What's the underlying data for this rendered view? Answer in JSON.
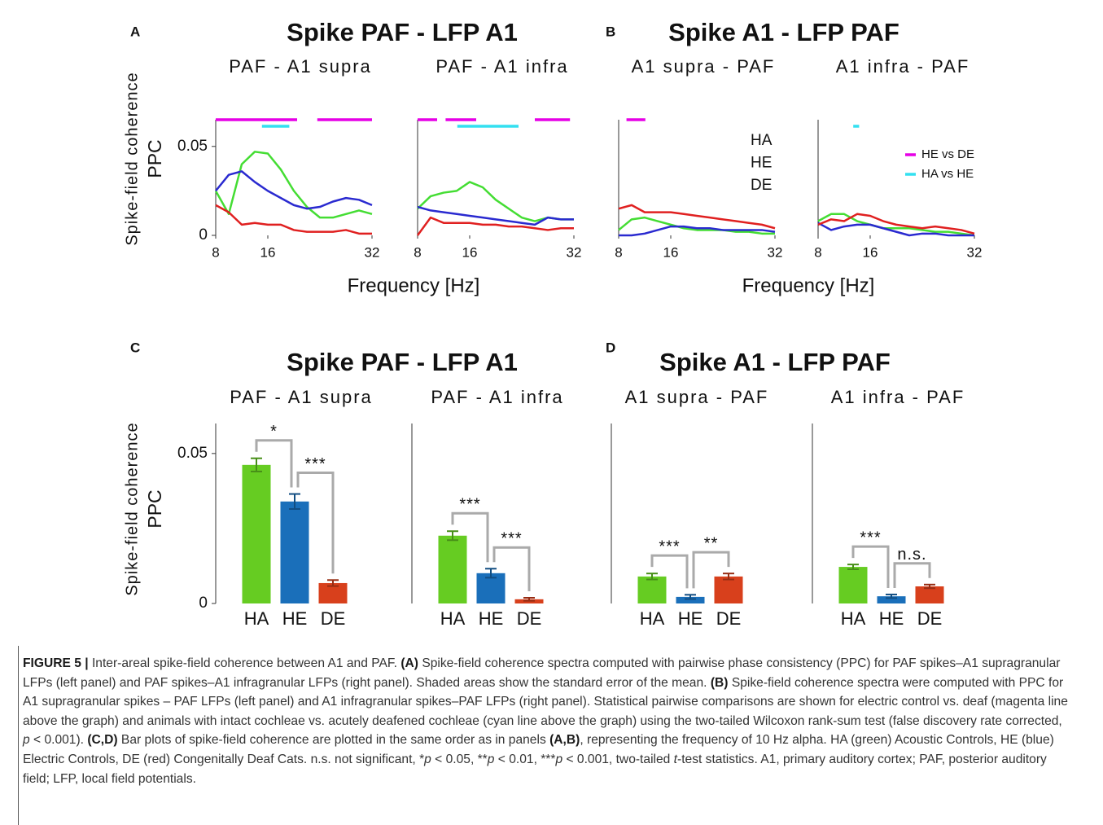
{
  "groups": [
    {
      "label": "A",
      "title": "Spike PAF - LFP A1",
      "xlabel": "Frequency [Hz]"
    },
    {
      "label": "B",
      "title": "Spike A1 - LFP PAF",
      "xlabel": "Frequency [Hz]"
    },
    {
      "label": "C",
      "title": "Spike PAF - LFP A1"
    },
    {
      "label": "D",
      "title": "Spike A1 - LFP PAF"
    }
  ],
  "chart_data": [
    {
      "type": "line",
      "title": "PAF - A1 supra",
      "ylabel": [
        "Spike-field coherence",
        "PPC"
      ],
      "x": [
        8,
        10,
        12,
        14,
        16,
        18,
        20,
        22,
        24,
        26,
        28,
        30,
        32
      ],
      "xlim": [
        8,
        32
      ],
      "xticks": [
        8,
        16,
        32
      ],
      "ylim": [
        0,
        0.065
      ],
      "yticks": [
        0,
        0.05
      ],
      "series": [
        {
          "color": "#44dd33",
          "values": [
            0.025,
            0.012,
            0.04,
            0.047,
            0.046,
            0.037,
            0.025,
            0.016,
            0.01,
            0.01,
            0.012,
            0.014,
            0.012
          ]
        },
        {
          "color": "#2a2ad0",
          "values": [
            0.025,
            0.034,
            0.036,
            0.03,
            0.025,
            0.021,
            0.017,
            0.015,
            0.016,
            0.019,
            0.021,
            0.02,
            0.017
          ]
        },
        {
          "color": "#e02020",
          "values": [
            0.017,
            0.013,
            0.006,
            0.007,
            0.006,
            0.006,
            0.003,
            0.002,
            0.002,
            0.002,
            0.003,
            0.001,
            0.001
          ]
        }
      ],
      "significance": [
        {
          "color": "#e600e6",
          "ranges": [
            [
              8,
              20.5
            ],
            [
              23.6,
              32
            ]
          ]
        },
        {
          "color": "#33e0f0",
          "ranges": [
            [
              15.1,
              19.3
            ]
          ]
        }
      ]
    },
    {
      "type": "line",
      "title": "PAF - A1 infra",
      "x": [
        8,
        10,
        12,
        14,
        16,
        18,
        20,
        22,
        24,
        26,
        28,
        30,
        32
      ],
      "xlim": [
        8,
        32
      ],
      "xticks": [
        8,
        16,
        32
      ],
      "ylim": [
        0,
        0.065
      ],
      "series": [
        {
          "color": "#44dd33",
          "values": [
            0.015,
            0.022,
            0.024,
            0.025,
            0.03,
            0.027,
            0.02,
            0.015,
            0.01,
            0.008,
            0.01,
            0.009,
            0.009
          ]
        },
        {
          "color": "#2a2ad0",
          "values": [
            0.016,
            0.014,
            0.013,
            0.012,
            0.011,
            0.01,
            0.009,
            0.008,
            0.007,
            0.006,
            0.01,
            0.009,
            0.009
          ]
        },
        {
          "color": "#e02020",
          "values": [
            0.0,
            0.01,
            0.007,
            0.007,
            0.007,
            0.006,
            0.006,
            0.005,
            0.005,
            0.004,
            0.003,
            0.004,
            0.004
          ]
        }
      ],
      "significance": [
        {
          "color": "#e600e6",
          "ranges": [
            [
              8,
              11
            ],
            [
              12.3,
              17
            ],
            [
              26,
              31.4
            ]
          ]
        },
        {
          "color": "#33e0f0",
          "ranges": [
            [
              14.1,
              23.5
            ]
          ]
        }
      ]
    },
    {
      "type": "line",
      "title": "A1 supra - PAF",
      "x": [
        8,
        10,
        12,
        14,
        16,
        18,
        20,
        22,
        24,
        26,
        28,
        30,
        32
      ],
      "xlim": [
        8,
        32
      ],
      "xticks": [
        8,
        16,
        32
      ],
      "ylim": [
        0,
        0.065
      ],
      "series": [
        {
          "name": "HA",
          "color": "#44dd33",
          "values": [
            0.003,
            0.009,
            0.01,
            0.008,
            0.006,
            0.004,
            0.003,
            0.003,
            0.003,
            0.002,
            0.002,
            0.001,
            0.001
          ]
        },
        {
          "name": "HE",
          "color": "#2a2ad0",
          "values": [
            0.0,
            0.0,
            0.001,
            0.003,
            0.005,
            0.005,
            0.004,
            0.004,
            0.003,
            0.003,
            0.003,
            0.003,
            0.002
          ]
        },
        {
          "name": "DE",
          "color": "#e02020",
          "values": [
            0.015,
            0.017,
            0.013,
            0.013,
            0.013,
            0.012,
            0.011,
            0.01,
            0.009,
            0.008,
            0.007,
            0.006,
            0.004
          ]
        }
      ],
      "significance": [
        {
          "color": "#e600e6",
          "ranges": [
            [
              9.2,
              12.1
            ]
          ]
        }
      ]
    },
    {
      "type": "line",
      "title": "A1 infra - PAF",
      "x": [
        8,
        10,
        12,
        14,
        16,
        18,
        20,
        22,
        24,
        26,
        28,
        30,
        32
      ],
      "xlim": [
        8,
        32
      ],
      "xticks": [
        8,
        16,
        32
      ],
      "ylim": [
        0,
        0.065
      ],
      "series": [
        {
          "color": "#44dd33",
          "values": [
            0.008,
            0.012,
            0.012,
            0.008,
            0.006,
            0.004,
            0.004,
            0.004,
            0.003,
            0.002,
            0.002,
            0.001,
            0.0
          ]
        },
        {
          "color": "#2a2ad0",
          "values": [
            0.007,
            0.003,
            0.005,
            0.006,
            0.006,
            0.004,
            0.002,
            0.0,
            0.001,
            0.001,
            0.0,
            0.0,
            0.0
          ]
        },
        {
          "color": "#e02020",
          "values": [
            0.006,
            0.009,
            0.008,
            0.012,
            0.011,
            0.008,
            0.006,
            0.005,
            0.004,
            0.005,
            0.004,
            0.003,
            0.001
          ]
        }
      ],
      "significance": [
        {
          "name": "HE vs DE",
          "color": "#e600e6",
          "ranges": []
        },
        {
          "name": "HA vs HE",
          "color": "#33e0f0",
          "ranges": [
            [
              13.4,
              14.3
            ]
          ]
        }
      ]
    },
    {
      "type": "bar",
      "title": "PAF - A1 supra",
      "ylabel": [
        "Spike-field coherence",
        "PPC"
      ],
      "categories": [
        "HA",
        "HE",
        "DE"
      ],
      "colors": [
        "#66cc22",
        "#1a6fba",
        "#d8401c"
      ],
      "values": [
        0.0462,
        0.034,
        0.0068
      ],
      "errors": [
        0.0022,
        0.0025,
        0.001
      ],
      "ylim": [
        0,
        0.06
      ],
      "yticks": [
        0,
        0.05
      ],
      "comparisons": [
        {
          "between": [
            "HA",
            "HE"
          ],
          "label": "*"
        },
        {
          "between": [
            "HE",
            "DE"
          ],
          "label": "***"
        }
      ]
    },
    {
      "type": "bar",
      "title": "PAF - A1 infra",
      "categories": [
        "HA",
        "HE",
        "DE"
      ],
      "colors": [
        "#66cc22",
        "#1a6fba",
        "#d8401c"
      ],
      "values": [
        0.0226,
        0.0101,
        0.0014
      ],
      "errors": [
        0.0015,
        0.0015,
        0.0005
      ],
      "ylim": [
        0,
        0.06
      ],
      "comparisons": [
        {
          "between": [
            "HA",
            "HE"
          ],
          "label": "***"
        },
        {
          "between": [
            "HE",
            "DE"
          ],
          "label": "***"
        }
      ]
    },
    {
      "type": "bar",
      "title": "A1 supra - PAF",
      "categories": [
        "HA",
        "HE",
        "DE"
      ],
      "colors": [
        "#66cc22",
        "#1a6fba",
        "#d8401c"
      ],
      "values": [
        0.009,
        0.0022,
        0.009
      ],
      "errors": [
        0.001,
        0.0007,
        0.001
      ],
      "ylim": [
        0,
        0.06
      ],
      "comparisons": [
        {
          "between": [
            "HA",
            "HE"
          ],
          "label": "***"
        },
        {
          "between": [
            "HE",
            "DE"
          ],
          "label": "**"
        }
      ]
    },
    {
      "type": "bar",
      "title": "A1 infra - PAF",
      "categories": [
        "HA",
        "HE",
        "DE"
      ],
      "colors": [
        "#66cc22",
        "#1a6fba",
        "#d8401c"
      ],
      "values": [
        0.0122,
        0.0024,
        0.0057
      ],
      "errors": [
        0.0008,
        0.0006,
        0.0006
      ],
      "ylim": [
        0,
        0.06
      ],
      "comparisons": [
        {
          "between": [
            "HA",
            "HE"
          ],
          "label": "***"
        },
        {
          "between": [
            "HE",
            "DE"
          ],
          "label": "n.s."
        }
      ]
    }
  ],
  "caption": [
    {
      "text": "FIGURE 5 |",
      "bold": true
    },
    {
      "text": " Inter-areal spike-field coherence between A1 and PAF. "
    },
    {
      "text": "(A)",
      "bold": true
    },
    {
      "text": " Spike-field coherence spectra computed with pairwise phase consistency (PPC) for PAF spikes–A1 supragranular LFPs (left panel) and PAF spikes–A1 infragranular LFPs (right panel). Shaded areas show the standard error of the mean. "
    },
    {
      "text": "(B)",
      "bold": true
    },
    {
      "text": " Spike-field coherence spectra were computed with PPC for A1 supragranular spikes – PAF LFPs (left panel) and A1 infragranular spikes–PAF LFPs (right panel). Statistical pairwise comparisons are shown for electric control vs. deaf (magenta line above the graph) and animals with intact cochleae vs. acutely deafened cochleae (cyan line above the graph) using the two-tailed Wilcoxon rank-sum test (false discovery rate corrected, "
    },
    {
      "text": "p",
      "italic": true
    },
    {
      "text": " < 0.001). "
    },
    {
      "text": "(C,D)",
      "bold": true
    },
    {
      "text": " Bar plots of spike-field coherence are plotted in the same order as in panels "
    },
    {
      "text": "(A,B)",
      "bold": true
    },
    {
      "text": ", representing the frequency of 10 Hz alpha. HA (green) Acoustic Controls, HE (blue) Electric Controls, DE (red) Congenitally Deaf Cats. n.s. not significant, *"
    },
    {
      "text": "p",
      "italic": true
    },
    {
      "text": " < 0.05, **"
    },
    {
      "text": "p",
      "italic": true
    },
    {
      "text": " < 0.01, ***"
    },
    {
      "text": "p",
      "italic": true
    },
    {
      "text": " < 0.001, two-tailed "
    },
    {
      "text": "t",
      "italic": true
    },
    {
      "text": "-test statistics. A1, primary auditory cortex; PAF, posterior auditory field; LFP, local field potentials."
    }
  ]
}
